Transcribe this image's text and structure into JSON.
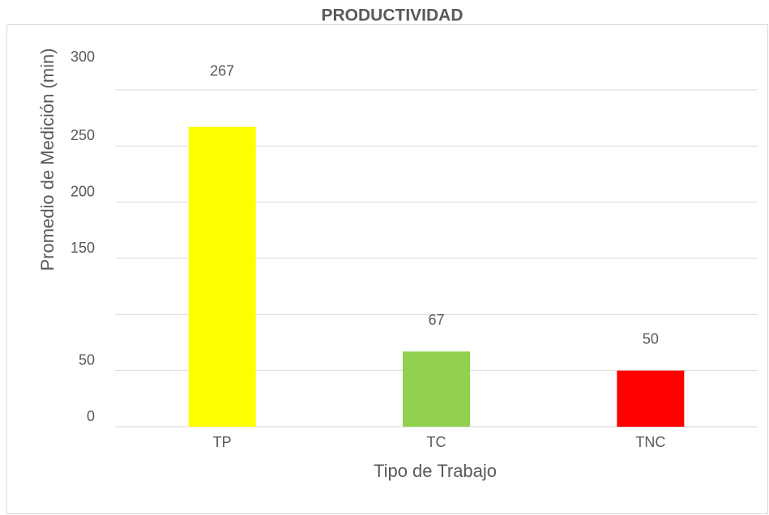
{
  "chart_data": {
    "type": "bar",
    "title": "PRODUCTIVIDAD",
    "xlabel": "Tipo de Trabajo",
    "ylabel": "Promedio de Medición (min)",
    "categories": [
      "TP",
      "TC",
      "TNC"
    ],
    "values": [
      267,
      67,
      50
    ],
    "colors": [
      "#ffff00",
      "#92d050",
      "#ff0000"
    ],
    "ylim": [
      0,
      300
    ],
    "yticks": [
      0,
      50,
      150,
      200,
      250,
      300
    ],
    "grid_lines": [
      0,
      50,
      100,
      150,
      200,
      250,
      300
    ],
    "grid": true
  }
}
